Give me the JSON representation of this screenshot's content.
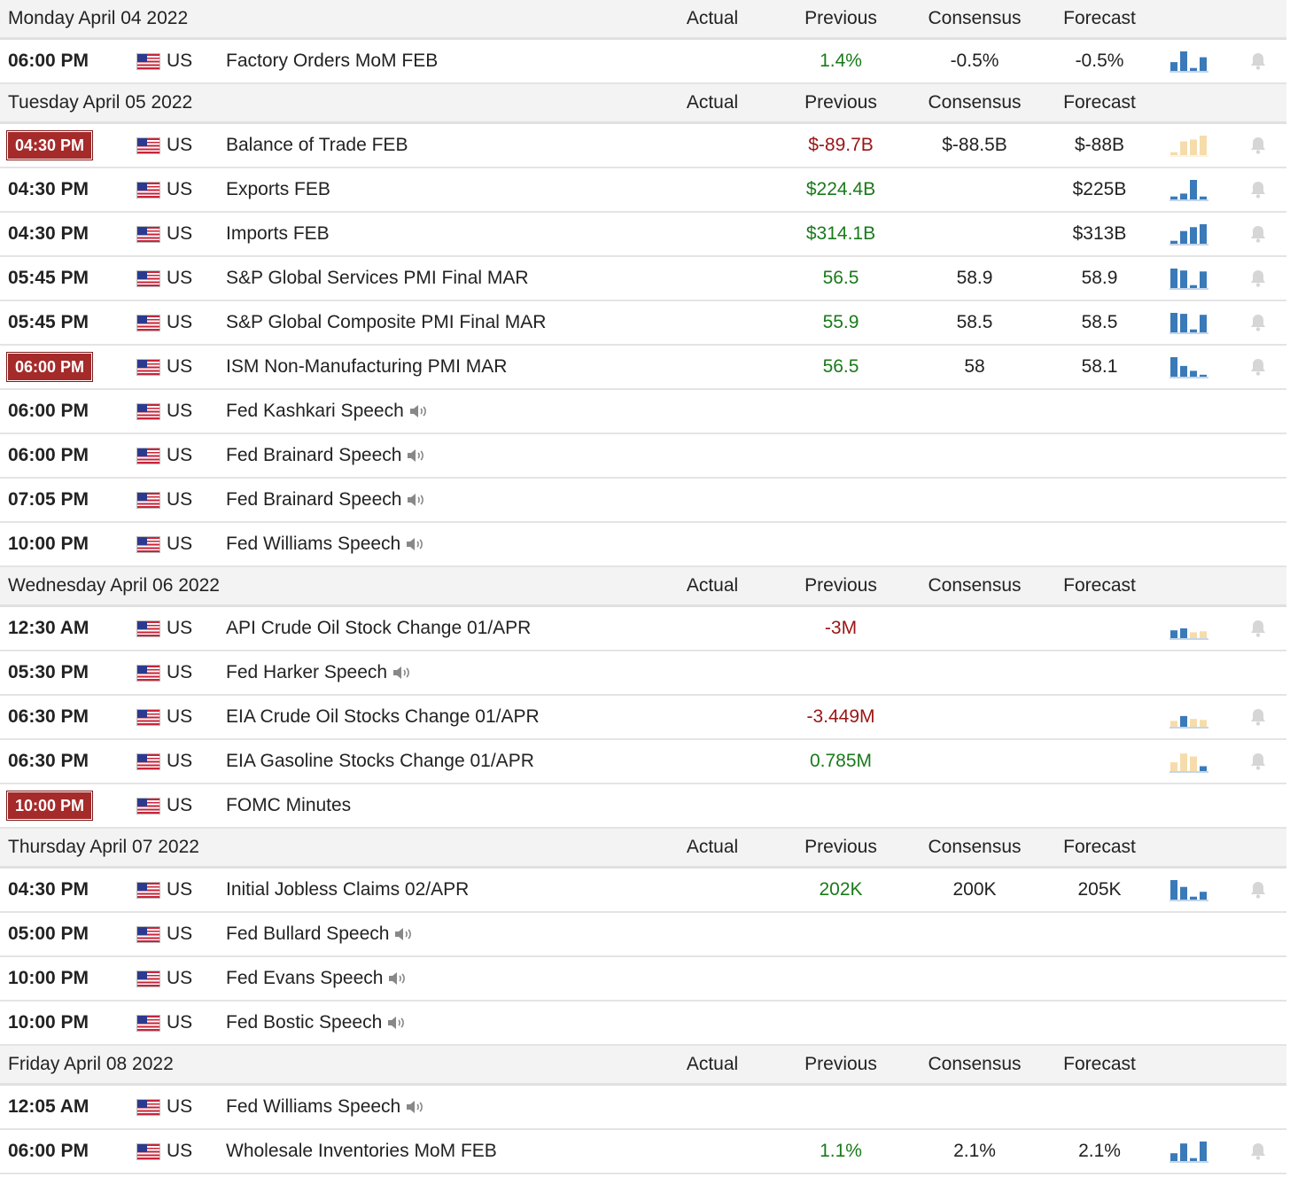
{
  "colors": {
    "positive": "#1a7a1a",
    "negative": "#9a1515",
    "highlight_time": "#a52a2a",
    "spark_blue": "#3b7ab8",
    "spark_tan": "#f5dcaa",
    "header_bg": "#f3f3f3"
  },
  "days": [
    {
      "title": "Monday April 04 2022",
      "columns": {
        "actual": "Actual",
        "previous": "Previous",
        "consensus": "Consensus",
        "forecast": "Forecast"
      },
      "events": [
        {
          "time": "06:00 PM",
          "highlight": false,
          "country": "US",
          "event": "Factory Orders MoM FEB",
          "speech": false,
          "actual": "",
          "previous": "1.4%",
          "previous_color": "pos",
          "consensus": "-0.5%",
          "forecast": "-0.5%",
          "spark": {
            "colors": "blue",
            "bars": [
              0.45,
              1,
              0.15,
              0.7
            ]
          },
          "bell": true
        }
      ]
    },
    {
      "title": "Tuesday April 05 2022",
      "columns": {
        "actual": "Actual",
        "previous": "Previous",
        "consensus": "Consensus",
        "forecast": "Forecast"
      },
      "events": [
        {
          "time": "04:30 PM",
          "highlight": true,
          "country": "US",
          "event": "Balance of Trade FEB",
          "speech": false,
          "actual": "",
          "previous": "$-89.7B",
          "previous_color": "neg",
          "consensus": "$-88.5B",
          "forecast": "$-88B",
          "spark": {
            "colors": "tan",
            "bars": [
              0.15,
              0.7,
              0.8,
              1
            ]
          },
          "bell": true
        },
        {
          "time": "04:30 PM",
          "highlight": false,
          "country": "US",
          "event": "Exports FEB",
          "speech": false,
          "actual": "",
          "previous": "$224.4B",
          "previous_color": "pos",
          "consensus": "",
          "forecast": "$225B",
          "spark": {
            "colors": "blue",
            "bars": [
              0.15,
              0.3,
              1,
              0.15
            ]
          },
          "bell": true
        },
        {
          "time": "04:30 PM",
          "highlight": false,
          "country": "US",
          "event": "Imports FEB",
          "speech": false,
          "actual": "",
          "previous": "$314.1B",
          "previous_color": "pos",
          "consensus": "",
          "forecast": "$313B",
          "spark": {
            "colors": "blue",
            "bars": [
              0.15,
              0.65,
              0.85,
              1
            ]
          },
          "bell": true
        },
        {
          "time": "05:45 PM",
          "highlight": false,
          "country": "US",
          "event": "S&P Global Services PMI Final MAR",
          "speech": false,
          "actual": "",
          "previous": "56.5",
          "previous_color": "pos",
          "consensus": "58.9",
          "forecast": "58.9",
          "spark": {
            "colors": "blue",
            "bars": [
              1,
              0.9,
              0.15,
              0.85
            ]
          },
          "bell": true
        },
        {
          "time": "05:45 PM",
          "highlight": false,
          "country": "US",
          "event": "S&P Global Composite PMI Final MAR",
          "speech": false,
          "actual": "",
          "previous": "55.9",
          "previous_color": "pos",
          "consensus": "58.5",
          "forecast": "58.5",
          "spark": {
            "colors": "blue",
            "bars": [
              1,
              0.95,
              0.15,
              0.9
            ]
          },
          "bell": true
        },
        {
          "time": "06:00 PM",
          "highlight": true,
          "country": "US",
          "event": "ISM Non-Manufacturing PMI MAR",
          "speech": false,
          "actual": "",
          "previous": "56.5",
          "previous_color": "pos",
          "consensus": "58",
          "forecast": "58.1",
          "spark": {
            "colors": "blue",
            "bars": [
              1,
              0.55,
              0.3,
              0.1
            ]
          },
          "bell": true
        },
        {
          "time": "06:00 PM",
          "highlight": false,
          "country": "US",
          "event": "Fed Kashkari Speech",
          "speech": true,
          "actual": "",
          "previous": "",
          "previous_color": "neu",
          "consensus": "",
          "forecast": "",
          "spark": null,
          "bell": false
        },
        {
          "time": "06:00 PM",
          "highlight": false,
          "country": "US",
          "event": "Fed Brainard Speech",
          "speech": true,
          "actual": "",
          "previous": "",
          "previous_color": "neu",
          "consensus": "",
          "forecast": "",
          "spark": null,
          "bell": false
        },
        {
          "time": "07:05 PM",
          "highlight": false,
          "country": "US",
          "event": "Fed Brainard Speech",
          "speech": true,
          "actual": "",
          "previous": "",
          "previous_color": "neu",
          "consensus": "",
          "forecast": "",
          "spark": null,
          "bell": false
        },
        {
          "time": "10:00 PM",
          "highlight": false,
          "country": "US",
          "event": "Fed Williams Speech",
          "speech": true,
          "actual": "",
          "previous": "",
          "previous_color": "neu",
          "consensus": "",
          "forecast": "",
          "spark": null,
          "bell": false
        }
      ]
    },
    {
      "title": "Wednesday April 06 2022",
      "columns": {
        "actual": "Actual",
        "previous": "Previous",
        "consensus": "Consensus",
        "forecast": "Forecast"
      },
      "events": [
        {
          "time": "12:30 AM",
          "highlight": false,
          "country": "US",
          "event": "API Crude Oil Stock Change 01/APR",
          "speech": false,
          "actual": "",
          "previous": "-3M",
          "previous_color": "neg",
          "consensus": "",
          "forecast": "",
          "spark": {
            "colors": "mixed_api",
            "bars": [
              0.4,
              0.5,
              0.3,
              0.35
            ]
          },
          "bell": true
        },
        {
          "time": "05:30 PM",
          "highlight": false,
          "country": "US",
          "event": "Fed Harker Speech",
          "speech": true,
          "actual": "",
          "previous": "",
          "previous_color": "neu",
          "consensus": "",
          "forecast": "",
          "spark": null,
          "bell": false
        },
        {
          "time": "06:30 PM",
          "highlight": false,
          "country": "US",
          "event": "EIA Crude Oil Stocks Change 01/APR",
          "speech": false,
          "actual": "",
          "previous": "-3.449M",
          "previous_color": "neg",
          "consensus": "",
          "forecast": "",
          "spark": {
            "colors": "mixed_eia",
            "bars": [
              0.3,
              0.55,
              0.4,
              0.35
            ]
          },
          "bell": true
        },
        {
          "time": "06:30 PM",
          "highlight": false,
          "country": "US",
          "event": "EIA Gasoline Stocks Change 01/APR",
          "speech": false,
          "actual": "",
          "previous": "0.785M",
          "previous_color": "pos",
          "consensus": "",
          "forecast": "",
          "spark": {
            "colors": "mixed_gas",
            "bars": [
              0.45,
              0.9,
              0.75,
              0.25
            ]
          },
          "bell": true
        },
        {
          "time": "10:00 PM",
          "highlight": true,
          "country": "US",
          "event": "FOMC Minutes",
          "speech": false,
          "actual": "",
          "previous": "",
          "previous_color": "neu",
          "consensus": "",
          "forecast": "",
          "spark": null,
          "bell": false
        }
      ]
    },
    {
      "title": "Thursday April 07 2022",
      "columns": {
        "actual": "Actual",
        "previous": "Previous",
        "consensus": "Consensus",
        "forecast": "Forecast"
      },
      "events": [
        {
          "time": "04:30 PM",
          "highlight": false,
          "country": "US",
          "event": "Initial Jobless Claims 02/APR",
          "speech": false,
          "actual": "",
          "previous": "202K",
          "previous_color": "pos",
          "consensus": "200K",
          "forecast": "205K",
          "spark": {
            "colors": "blue",
            "bars": [
              1,
              0.65,
              0.15,
              0.4
            ]
          },
          "bell": true
        },
        {
          "time": "05:00 PM",
          "highlight": false,
          "country": "US",
          "event": "Fed Bullard Speech",
          "speech": true,
          "actual": "",
          "previous": "",
          "previous_color": "neu",
          "consensus": "",
          "forecast": "",
          "spark": null,
          "bell": false
        },
        {
          "time": "10:00 PM",
          "highlight": false,
          "country": "US",
          "event": "Fed Evans Speech",
          "speech": true,
          "actual": "",
          "previous": "",
          "previous_color": "neu",
          "consensus": "",
          "forecast": "",
          "spark": null,
          "bell": false
        },
        {
          "time": "10:00 PM",
          "highlight": false,
          "country": "US",
          "event": "Fed Bostic Speech",
          "speech": true,
          "actual": "",
          "previous": "",
          "previous_color": "neu",
          "consensus": "",
          "forecast": "",
          "spark": null,
          "bell": false
        }
      ]
    },
    {
      "title": "Friday April 08 2022",
      "columns": {
        "actual": "Actual",
        "previous": "Previous",
        "consensus": "Consensus",
        "forecast": "Forecast"
      },
      "events": [
        {
          "time": "12:05 AM",
          "highlight": false,
          "country": "US",
          "event": "Fed Williams Speech",
          "speech": true,
          "actual": "",
          "previous": "",
          "previous_color": "neu",
          "consensus": "",
          "forecast": "",
          "spark": null,
          "bell": false
        },
        {
          "time": "06:00 PM",
          "highlight": false,
          "country": "US",
          "event": "Wholesale Inventories MoM FEB",
          "speech": false,
          "actual": "",
          "previous": "1.1%",
          "previous_color": "pos",
          "consensus": "2.1%",
          "forecast": "2.1%",
          "spark": {
            "colors": "blue",
            "bars": [
              0.4,
              0.9,
              0.15,
              1
            ]
          },
          "bell": true
        }
      ]
    }
  ]
}
